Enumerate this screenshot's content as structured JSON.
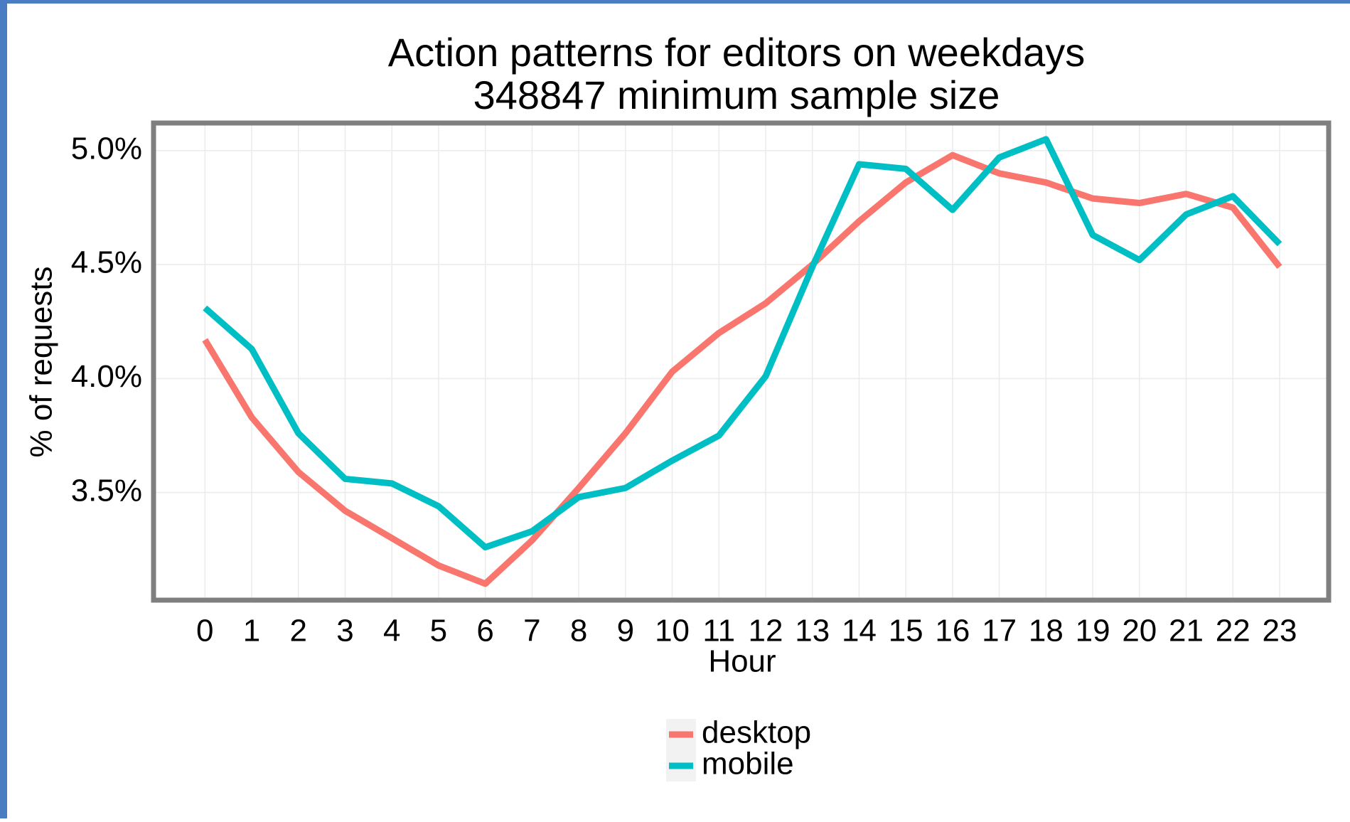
{
  "chart_data": {
    "type": "line",
    "title": "Action patterns for editors on weekdays",
    "subtitle": "348847 minimum sample size",
    "x_label": "Hour",
    "y_label": "% of requests",
    "x": [
      0,
      1,
      2,
      3,
      4,
      5,
      6,
      7,
      8,
      9,
      10,
      11,
      12,
      13,
      14,
      15,
      16,
      17,
      18,
      19,
      20,
      21,
      22,
      23
    ],
    "series": [
      {
        "name": "desktop",
        "color": "#F8766D",
        "values": [
          4.17,
          3.83,
          3.59,
          3.42,
          3.3,
          3.18,
          3.1,
          3.29,
          3.52,
          3.76,
          4.03,
          4.2,
          4.33,
          4.5,
          4.69,
          4.86,
          4.98,
          4.9,
          4.86,
          4.79,
          4.77,
          4.81,
          4.75,
          4.49
        ]
      },
      {
        "name": "mobile",
        "color": "#00BFC4",
        "values": [
          4.31,
          4.13,
          3.76,
          3.56,
          3.54,
          3.44,
          3.26,
          3.33,
          3.48,
          3.52,
          3.64,
          3.75,
          4.01,
          4.49,
          4.94,
          4.92,
          4.74,
          4.97,
          5.05,
          4.63,
          4.52,
          4.72,
          4.8,
          4.59
        ]
      }
    ],
    "xlim": [
      -1.1,
      24.05
    ],
    "xticks": [
      0,
      1,
      2,
      3,
      4,
      5,
      6,
      7,
      8,
      9,
      10,
      11,
      12,
      13,
      14,
      15,
      16,
      17,
      18,
      19,
      20,
      21,
      22,
      23
    ],
    "ylim": [
      3.028,
      5.121
    ],
    "yticks": [
      {
        "value": 3.5,
        "label": "3.5%"
      },
      {
        "value": 4,
        "label": "4.0%"
      },
      {
        "value": 4.5,
        "label": "4.5%"
      },
      {
        "value": 5,
        "label": "5.0%"
      }
    ],
    "grid": true,
    "legend": "bottom"
  }
}
